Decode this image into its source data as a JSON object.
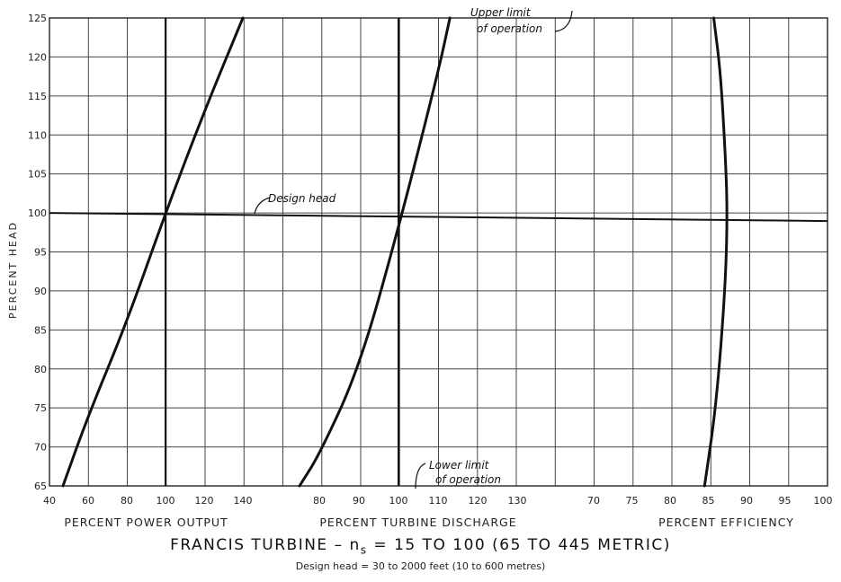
{
  "chart_data": {
    "type": "line",
    "title": "FRANCIS TURBINE - n_s = 15 TO 100 (65 TO 445 METRIC)",
    "title_parts": {
      "prefix": "FRANCIS TURBINE – n",
      "subscript": "s",
      "suffix": " = 15 TO 100 (65 TO 445 METRIC)"
    },
    "subtitle": "Design head = 30 to 2000 feet (10 to 600 metres)",
    "ylabel": "PERCENT HEAD",
    "ylim": [
      65,
      125
    ],
    "yticks": [
      "65",
      "70",
      "75",
      "80",
      "85",
      "90",
      "95",
      "100",
      "105",
      "110",
      "115",
      "120",
      "125"
    ],
    "grid": true,
    "panels": [
      {
        "xlabel": "PERCENT POWER OUTPUT",
        "xlim": [
          40,
          140
        ],
        "xticks": [
          "40",
          "60",
          "80",
          "100",
          "120",
          "140"
        ],
        "series": [
          {
            "x": [
              47,
              60,
              80,
              100,
              120,
              140
            ],
            "y": [
              65,
              74,
              86,
              100,
              113,
              125
            ]
          }
        ]
      },
      {
        "xlabel": "PERCENT TURBINE DISCHARGE",
        "xlim": [
          80,
          130
        ],
        "xticks": [
          "80",
          "90",
          "100",
          "110",
          "120",
          "130"
        ],
        "series": [
          {
            "x": [
              75,
              80,
              90,
              100,
              110,
              113
            ],
            "y": [
              65,
              69,
              80,
              98,
              118,
              125
            ]
          }
        ]
      },
      {
        "xlabel": "PERCENT EFFICIENCY",
        "xlim": [
          70,
          100
        ],
        "xticks": [
          "70",
          "75",
          "80",
          "85",
          "90",
          "95",
          "100"
        ],
        "series": [
          {
            "x": [
              84.5,
              86,
              87.2,
              87.5,
              87.2,
              86.6,
              85.7
            ],
            "y": [
              65,
              75,
              90,
              100,
              108,
              118,
              125
            ]
          }
        ]
      }
    ],
    "annotations": [
      {
        "text": "Design head",
        "y": 100
      },
      {
        "text_lines": [
          "Upper limit",
          "of operation"
        ]
      },
      {
        "text_lines": [
          "Lower limit",
          "of operation"
        ]
      }
    ]
  }
}
